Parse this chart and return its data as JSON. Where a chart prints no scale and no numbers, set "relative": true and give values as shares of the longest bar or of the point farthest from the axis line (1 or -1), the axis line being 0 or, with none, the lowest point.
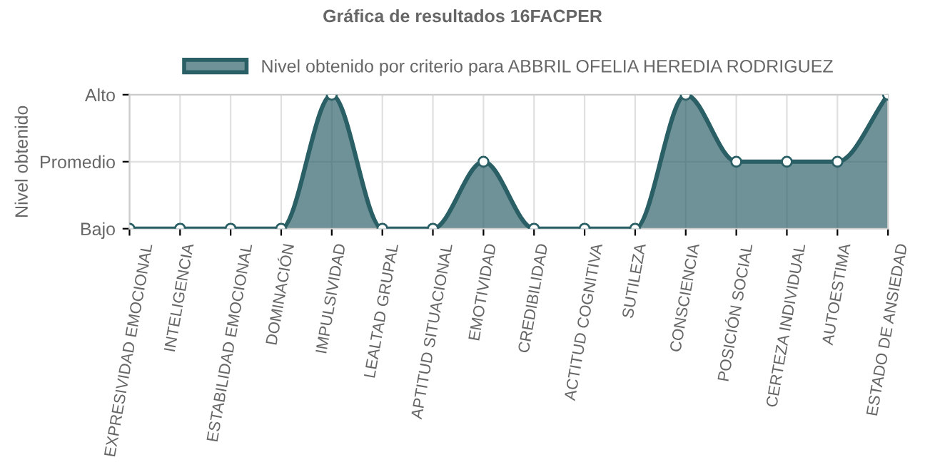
{
  "chart_data": {
    "type": "area",
    "title": "Gráfica de resultados 16FACPER",
    "ylabel": "Nivel obtenido",
    "categories": [
      "EXPRESIVIDAD EMOCIONAL",
      "INTELIGENCIA",
      "ESTABILIDAD EMOCIONAL",
      "DOMINACIÓN",
      "IMPULSIVIDAD",
      "LEALTAD GRUPAL",
      "APTITUD SITUACIONAL",
      "EMOTIVIDAD",
      "CREDIBILIDAD",
      "ACTITUD COGNITIVA",
      "SUTILEZA",
      "CONSCIENCIA",
      "POSICIÓN SOCIAL",
      "CERTEZA INDIVIDUAL",
      "AUTOESTIMA",
      "ESTADO DE ANSIEDAD"
    ],
    "series": [
      {
        "name": "Nivel obtenido por criterio para ABBRIL OFELIA HEREDIA RODRIGUEZ",
        "color": "#2a5f66",
        "values": [
          0,
          0,
          0,
          0,
          1,
          0,
          0,
          0.5,
          0,
          0,
          0,
          1,
          0.5,
          0.5,
          0.5,
          1
        ]
      }
    ],
    "relative": true,
    "annotations": [
      "Bajo",
      "Promedio",
      "Alto"
    ],
    "grid": true,
    "legend": "top",
    "marker": "circle",
    "line_style": "solid"
  }
}
